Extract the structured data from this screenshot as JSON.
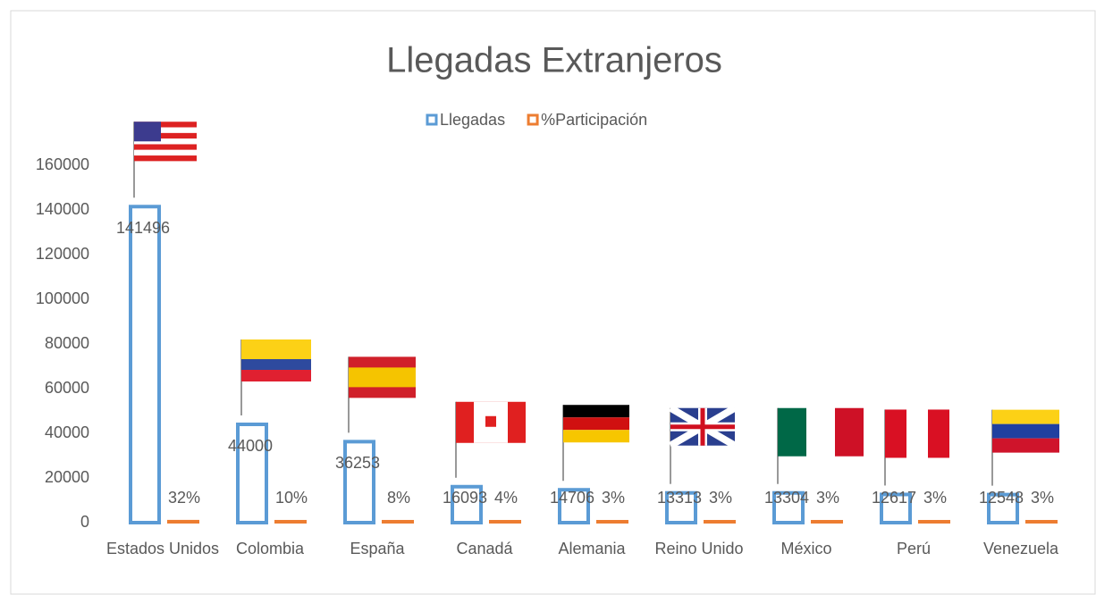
{
  "chart_data": {
    "type": "bar",
    "title": "Llegadas Extranjeros",
    "categories": [
      "Estados Unidos",
      "Colombia",
      "España",
      "Canadá",
      "Alemania",
      "Reino Unido",
      "México",
      "Perú",
      "Venezuela"
    ],
    "series": [
      {
        "name": "Llegadas",
        "color": "#5b9bd5",
        "values": [
          141496,
          44000,
          36253,
          16093,
          14706,
          13313,
          13304,
          12617,
          12548
        ]
      },
      {
        "name": "%Participación",
        "color": "#ed7d31",
        "values": [
          32,
          10,
          8,
          4,
          3,
          3,
          3,
          3,
          3
        ],
        "value_labels": [
          "32%",
          "10%",
          "8%",
          "4%",
          "3%",
          "3%",
          "3%",
          "3%",
          "3%"
        ]
      }
    ],
    "ylim": [
      0,
      160000
    ],
    "yticks": [
      0,
      20000,
      40000,
      60000,
      80000,
      100000,
      120000,
      140000,
      160000
    ],
    "legend": "top"
  }
}
